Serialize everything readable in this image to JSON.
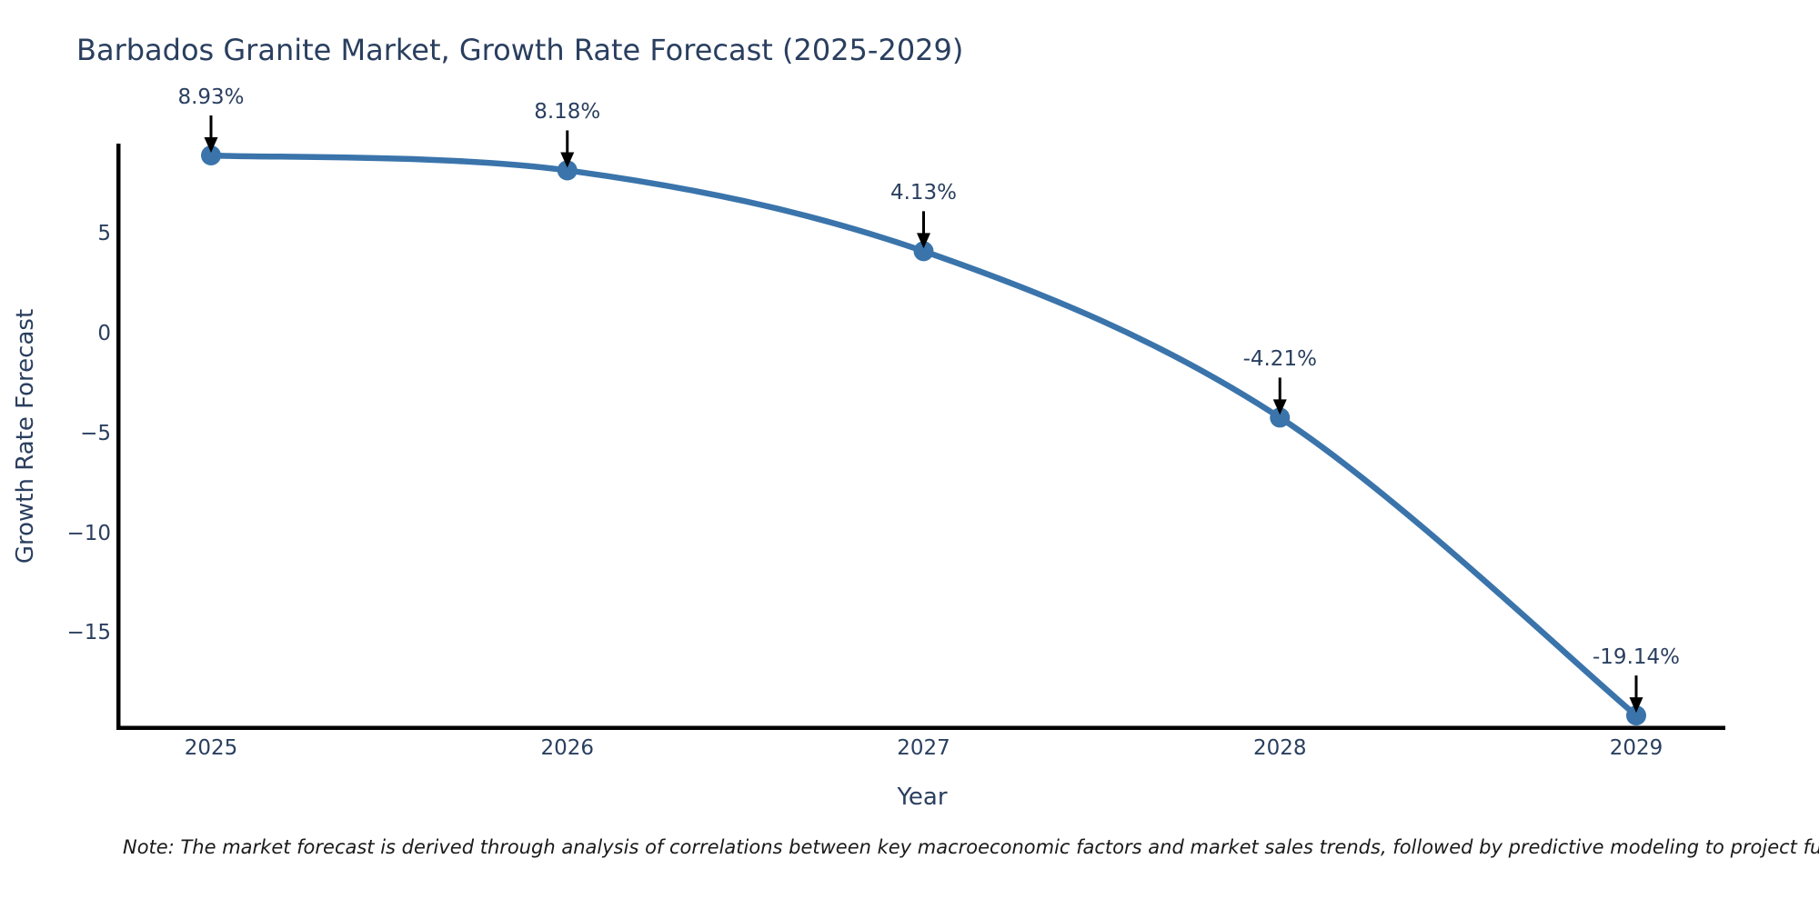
{
  "title": "Barbados Granite Market, Growth Rate Forecast (2025-2029)",
  "footnote": "Note: The market forecast is derived through analysis of correlations between key macroeconomic factors and market sales trends, followed by predictive modeling to project future sales.",
  "colors": {
    "line": "#3a74ab",
    "marker": "#3a74ab",
    "text": "#2a3f5f",
    "axis": "#000000",
    "arrow": "#000000",
    "note": "#1a1a1a",
    "background": "#ffffff"
  },
  "axes": {
    "x_title": "Year",
    "y_title": "Growth Rate Forecast",
    "x_tick_labels": [
      "2025",
      "2026",
      "2027",
      "2028",
      "2029"
    ],
    "y_tick_labels": [
      "5",
      "0",
      "−5",
      "−10",
      "−15"
    ],
    "y_tick_values": [
      5,
      0,
      -5,
      -10,
      -15
    ]
  },
  "chart_data": {
    "type": "line",
    "curve": "spline",
    "x": [
      2025,
      2026,
      2027,
      2028,
      2029
    ],
    "values": [
      8.93,
      8.18,
      4.13,
      -4.21,
      -19.14
    ],
    "point_labels": [
      "8.93%",
      "8.18%",
      "4.13%",
      "-4.21%",
      "-19.14%"
    ],
    "title": "Barbados Granite Market, Growth Rate Forecast (2025-2029)",
    "xlabel": "Year",
    "ylabel": "Growth Rate Forecast",
    "xlim": [
      2024.74,
      2029.25
    ],
    "ylim": [
      -19.8,
      9.5
    ],
    "grid": false,
    "legend": false,
    "annotations": "black arrow pointing down to each data point with percent label above"
  }
}
